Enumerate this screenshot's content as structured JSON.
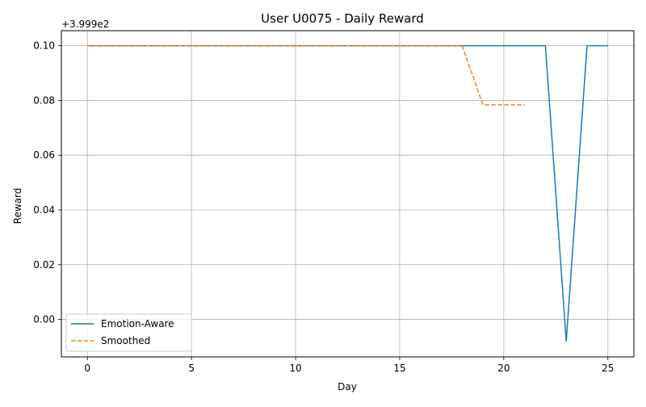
{
  "chart_data": {
    "type": "line",
    "title": "User U0075 - Daily Reward",
    "xlabel": "Day",
    "ylabel": "Reward",
    "offset_label": "+3.999e2",
    "xlim": [
      -1.25,
      26.25
    ],
    "ylim": [
      -0.0137,
      0.1055
    ],
    "xticks": [
      0,
      5,
      10,
      15,
      20,
      25
    ],
    "xtick_labels": [
      "0",
      "5",
      "10",
      "15",
      "20",
      "25"
    ],
    "yticks": [
      0.0,
      0.02,
      0.04,
      0.06,
      0.08,
      0.1
    ],
    "ytick_labels": [
      "0.00",
      "0.02",
      "0.04",
      "0.06",
      "0.08",
      "0.10"
    ],
    "grid": true,
    "legend_position": "lower-left",
    "series": [
      {
        "name": "Emotion-Aware",
        "color": "#1f77b4",
        "style": "solid",
        "x": [
          0,
          1,
          2,
          3,
          4,
          5,
          6,
          7,
          8,
          9,
          10,
          11,
          12,
          13,
          14,
          15,
          16,
          17,
          18,
          19,
          20,
          21,
          22,
          23,
          24,
          25
        ],
        "values": [
          0.1,
          0.1,
          0.1,
          0.1,
          0.1,
          0.1,
          0.1,
          0.1,
          0.1,
          0.1,
          0.1,
          0.1,
          0.1,
          0.1,
          0.1,
          0.1,
          0.1,
          0.1,
          0.1,
          0.1,
          0.1,
          0.1,
          0.1,
          -0.008,
          0.1,
          0.1
        ]
      },
      {
        "name": "Smoothed",
        "color": "#ff7f0e",
        "style": "dashed",
        "x": [
          0,
          1,
          2,
          3,
          4,
          5,
          6,
          7,
          8,
          9,
          10,
          11,
          12,
          13,
          14,
          15,
          16,
          17,
          18,
          19,
          20,
          21
        ],
        "values": [
          0.1,
          0.1,
          0.1,
          0.1,
          0.1,
          0.1,
          0.1,
          0.1,
          0.1,
          0.1,
          0.1,
          0.1,
          0.1,
          0.1,
          0.1,
          0.1,
          0.1,
          0.1,
          0.1,
          0.0784,
          0.0784,
          0.0784
        ]
      }
    ]
  }
}
